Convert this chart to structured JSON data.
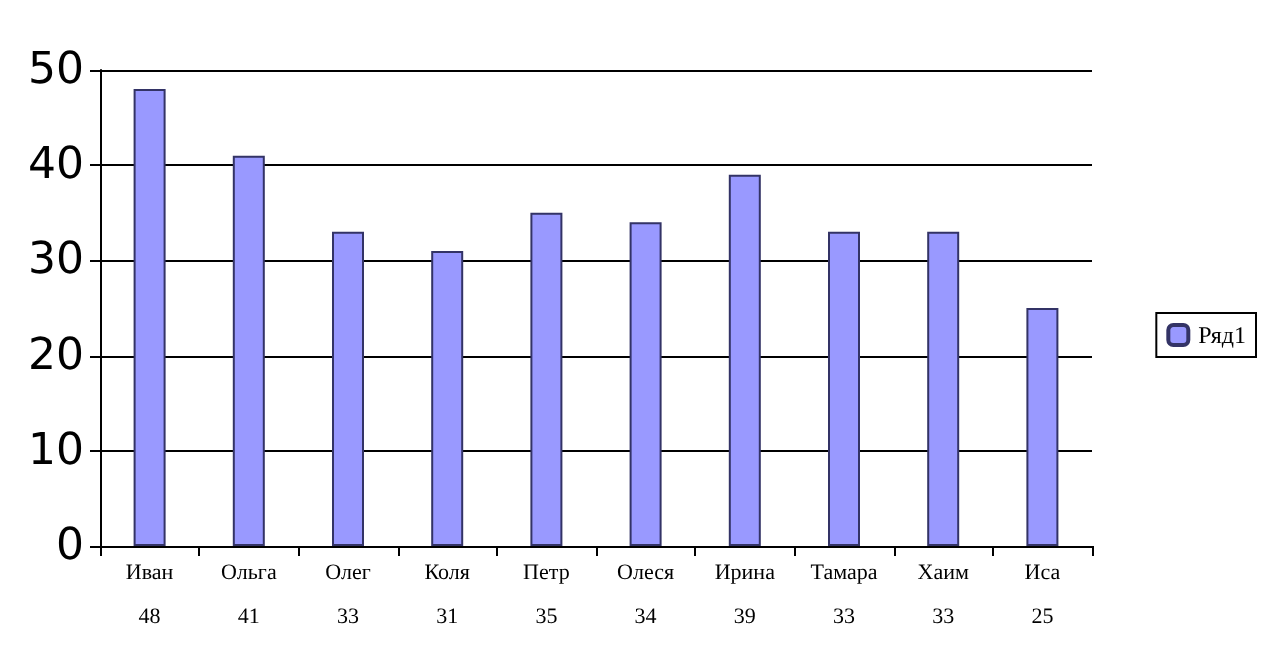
{
  "chart_data": {
    "type": "bar",
    "categories": [
      "Иван",
      "Ольга",
      "Олег",
      "Коля",
      "Петр",
      "Олеся",
      "Ирина",
      "Тамара",
      "Хаим",
      "Иса"
    ],
    "series": [
      {
        "name": "Ряд1",
        "color": "#9999ff",
        "values": [
          48,
          41,
          33,
          31,
          35,
          34,
          39,
          33,
          33,
          25
        ]
      }
    ],
    "ylim": [
      0,
      50
    ],
    "yticks": [
      0,
      10,
      20,
      30,
      40,
      50
    ],
    "grid": "y",
    "legend": "right",
    "data_labels": true
  }
}
